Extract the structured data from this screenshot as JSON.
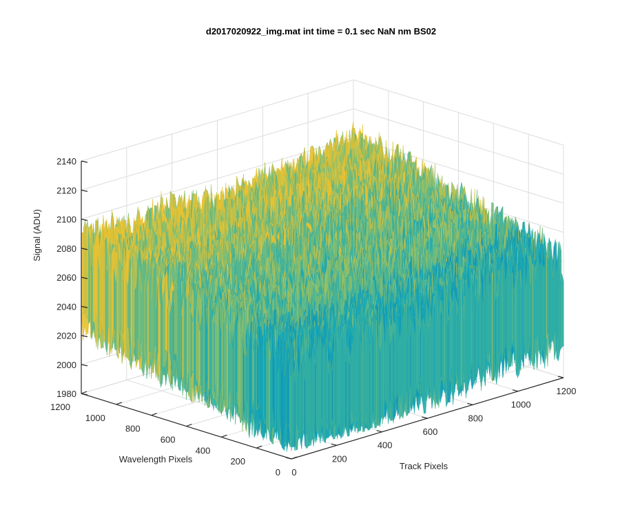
{
  "chart_data": {
    "type": "surface",
    "title": "d2017020922_img.mat int time = 0.1 sec  NaN nm BS02",
    "xlabel": "Track Pixels",
    "ylabel": "Wavelength Pixels",
    "zlabel": "Signal (ADU)",
    "xlim": [
      0,
      1200
    ],
    "ylim": [
      0,
      1200
    ],
    "zlim": [
      1980,
      2140
    ],
    "x_ticks": [
      "0",
      "200",
      "400",
      "600",
      "800",
      "1000",
      "1200"
    ],
    "y_ticks": [
      "0",
      "200",
      "400",
      "600",
      "800",
      "1000",
      "1200"
    ],
    "z_ticks": [
      "1980",
      "2000",
      "2020",
      "2040",
      "2060",
      "2080",
      "2100",
      "2120",
      "2140"
    ],
    "grid": true,
    "colormap": "parula",
    "colors": {
      "low": "#0072bd",
      "mid": "#17a9b5",
      "high": "#e8c232"
    },
    "surface_approx": {
      "signal_range": [
        1985,
        2135
      ],
      "typical_signal": 2040,
      "sample_rows": [
        {
          "wavelength_px": 1200,
          "signal": [
            2060,
            2058,
            2062,
            2055,
            2060,
            2064,
            2070
          ]
        },
        {
          "wavelength_px": 1000,
          "signal": [
            2052,
            2048,
            2050,
            2058,
            2062,
            2066,
            2068
          ]
        },
        {
          "wavelength_px": 800,
          "signal": [
            2046,
            2044,
            2048,
            2052,
            2056,
            2060,
            2062
          ]
        },
        {
          "wavelength_px": 600,
          "signal": [
            2040,
            2036,
            2040,
            2044,
            2048,
            2052,
            2054
          ]
        },
        {
          "wavelength_px": 400,
          "signal": [
            2034,
            2030,
            2032,
            2036,
            2040,
            2044,
            2046
          ]
        },
        {
          "wavelength_px": 200,
          "signal": [
            2028,
            2024,
            2026,
            2030,
            2034,
            2038,
            2040
          ]
        },
        {
          "wavelength_px": 0,
          "signal": [
            2022,
            2018,
            2020,
            2024,
            2028,
            2032,
            2034
          ]
        }
      ],
      "sample_track_px": [
        0,
        200,
        400,
        600,
        800,
        1000,
        1200
      ]
    }
  }
}
